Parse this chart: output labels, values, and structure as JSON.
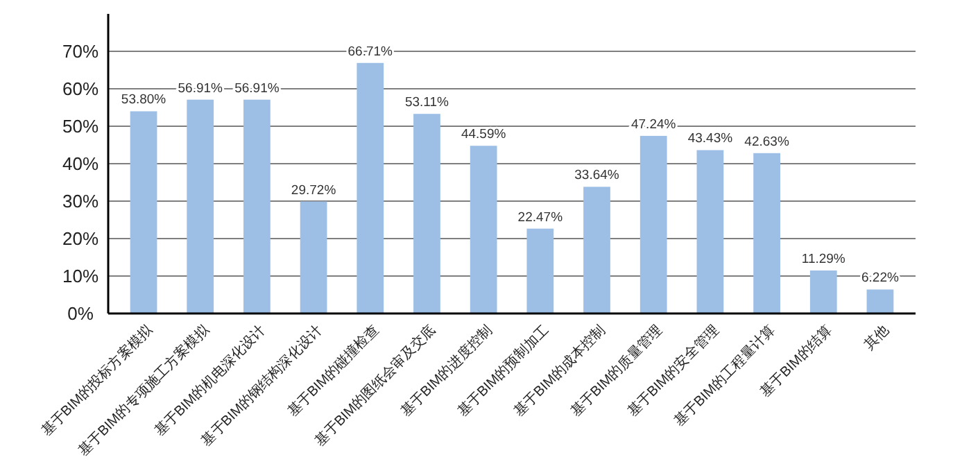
{
  "chart_data": {
    "type": "bar",
    "categories": [
      "基于BIM的投标方案模拟",
      "基于BIM的专项施工方案模拟",
      "基于BIM的机电深化设计",
      "基于BIM的钢结构深化设计",
      "基于BIM的碰撞检查",
      "基于BIM的图纸会审及交底",
      "基于BIM的进度控制",
      "基于BIM的预制加工",
      "基于BIM的成本控制",
      "基于BIM的质量管理",
      "基于BIM的安全管理",
      "基于BIM的工程量计算",
      "基于BIM的结算",
      "其他"
    ],
    "values": [
      53.8,
      56.91,
      56.91,
      29.72,
      66.71,
      53.11,
      44.59,
      22.47,
      33.64,
      47.24,
      43.43,
      42.63,
      11.29,
      6.22
    ],
    "value_labels": [
      "53.80%",
      "56.91%",
      "56.91%",
      "29.72%",
      "66.71%",
      "53.11%",
      "44.59%",
      "22.47%",
      "33.64%",
      "47.24%",
      "43.43%",
      "42.63%",
      "11.29%",
      "6.22%"
    ],
    "color": "#9dbfe6",
    "ylim": [
      0,
      80
    ],
    "yticks": [
      {
        "value": 0,
        "label": "0%"
      },
      {
        "value": 10,
        "label": "10%"
      },
      {
        "value": 20,
        "label": "20%"
      },
      {
        "value": 30,
        "label": "30%"
      },
      {
        "value": 40,
        "label": "40%"
      },
      {
        "value": 50,
        "label": "50%"
      },
      {
        "value": 60,
        "label": "60%"
      },
      {
        "value": 70,
        "label": "70%"
      }
    ],
    "grid": "y"
  }
}
